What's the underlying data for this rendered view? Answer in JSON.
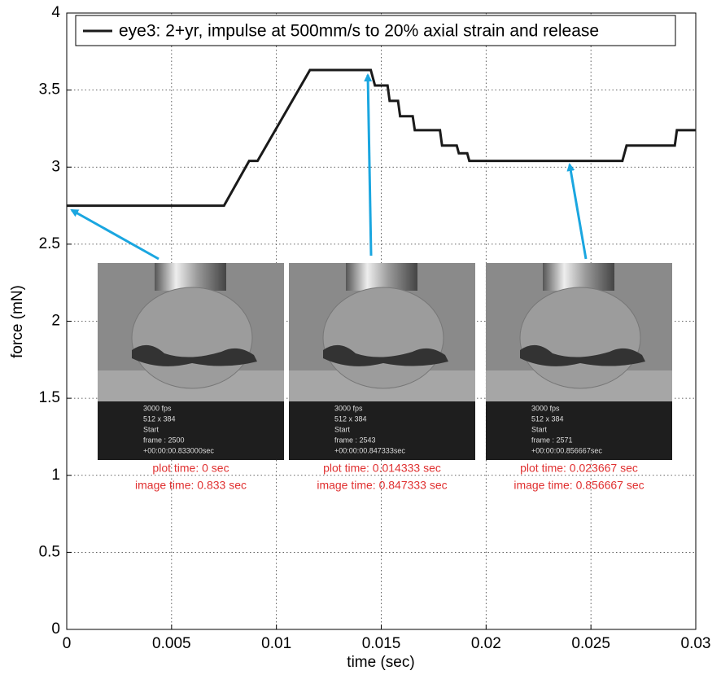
{
  "chart_data": {
    "type": "line",
    "xlabel": "time (sec)",
    "ylabel": "force (mN)",
    "xlim": [
      0,
      0.03
    ],
    "xticks": [
      0,
      0.005,
      0.01,
      0.015,
      0.02,
      0.025,
      0.03
    ],
    "ylim": [
      0,
      4
    ],
    "yticks": [
      0,
      0.5,
      1,
      1.5,
      2,
      2.5,
      3,
      3.5,
      4
    ],
    "grid": true,
    "legend": "top",
    "series": [
      {
        "name": "eye3: 2+yr, impulse at 500mm/s to 20% axial strain and release",
        "color": "#1a1a1a",
        "x": [
          0,
          0.0075,
          0.0087,
          0.0091,
          0.0116,
          0.0145,
          0.0147,
          0.0153,
          0.0154,
          0.0158,
          0.0159,
          0.0165,
          0.0166,
          0.0178,
          0.0179,
          0.0186,
          0.0187,
          0.0191,
          0.0192,
          0.0265,
          0.0267,
          0.029,
          0.0291,
          0.03
        ],
        "values": [
          2.75,
          2.75,
          3.04,
          3.04,
          3.63,
          3.63,
          3.53,
          3.53,
          3.43,
          3.43,
          3.33,
          3.33,
          3.24,
          3.24,
          3.14,
          3.14,
          3.09,
          3.09,
          3.04,
          3.04,
          3.14,
          3.14,
          3.24,
          3.24
        ]
      }
    ],
    "insets": [
      {
        "overlay": [
          "3000 fps",
          "512 x 384",
          "Start",
          "frame : 2500",
          "+00:00:00.833000sec"
        ],
        "captions": [
          "plot time: 0 sec",
          "image time: 0.833 sec"
        ]
      },
      {
        "overlay": [
          "3000 fps",
          "512 x 384",
          "Start",
          "frame : 2543",
          "+00:00:00.847333sec"
        ],
        "captions": [
          "plot time: 0.014333 sec",
          "image time: 0.847333 sec"
        ]
      },
      {
        "overlay": [
          "3000 fps",
          "512 x 384",
          "Start",
          "frame : 2571",
          "+00:00:00.856667sec"
        ],
        "captions": [
          "plot time: 0.023667 sec",
          "image time: 0.856667 sec"
        ]
      }
    ]
  }
}
